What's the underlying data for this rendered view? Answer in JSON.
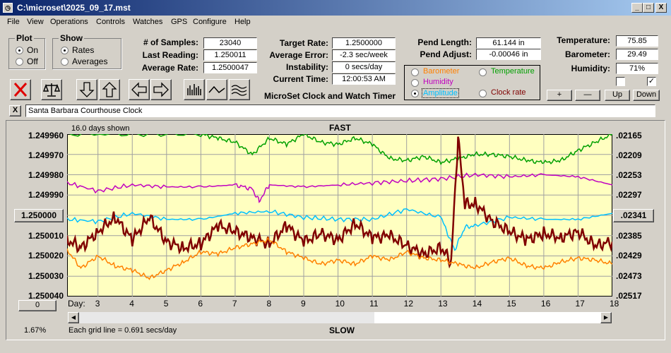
{
  "window": {
    "title": "C:\\microset\\2025_09_17.mst",
    "icon": "watch-icon",
    "minimize": "_",
    "maximize": "□",
    "close": "X"
  },
  "menu": [
    "File",
    "View",
    "Operations",
    "Controls",
    "Watches",
    "GPS",
    "Configure",
    "Help"
  ],
  "plot_group": {
    "title": "Plot",
    "on": "On",
    "off": "Off",
    "selected": "On"
  },
  "show_group": {
    "title": "Show",
    "rates": "Rates",
    "averages": "Averages",
    "selected": "Rates"
  },
  "stats": {
    "samples_label": "# of Samples:",
    "samples": "23040",
    "last_label": "Last Reading:",
    "last": "1.250011",
    "avg_label": "Average Rate:",
    "avg": "1.2500047",
    "target_label": "Target Rate:",
    "target": "1.2500000",
    "averr_label": "Average Error:",
    "averr": "-2.3 sec/week",
    "instab_label": "Instability:",
    "instab": "0 secs/day",
    "time_label": "Current Time:",
    "time": "12:00:53 AM",
    "pendlen_label": "Pend Length:",
    "pendlen": "61.144 in",
    "pendadj_label": "Pend Adjust:",
    "pendadj": "-0.00046 in",
    "temp_label": "Temperature:",
    "temp": "75.85",
    "baro_label": "Barometer:",
    "baro": "29.49",
    "hum_label": "Humidity:",
    "hum": "71%"
  },
  "app_name": "MicroSet Clock and Watch Timer",
  "sensors": {
    "barometer": "Barometer",
    "temperature": "Temperature",
    "humidity": "Humidity",
    "amplitude": "Amplitude",
    "clockrate": "Clock rate",
    "selected": "Amplitude"
  },
  "sensor_colors": {
    "barometer": "#ff8000",
    "temperature": "#00a000",
    "humidity": "#c000c0",
    "amplitude": "#00c0ff",
    "clockrate": "#800000"
  },
  "checks": {
    "left": false,
    "right": true,
    "right_mark": "✓"
  },
  "buttons": {
    "plus": "+",
    "minus": "—",
    "up": "Up",
    "down": "Down",
    "zero": "0",
    "rate_center": "1.250000",
    "right_center": ".02341"
  },
  "toolbar_icons": [
    "cancel-icon",
    "balance-icon",
    "arrow-down-icon",
    "arrow-up-icon",
    "arrow-left-icon",
    "arrow-right-icon",
    "bar-graph-icon",
    "line-graph-icon",
    "wave-icon"
  ],
  "clock_close": "X",
  "clock_name": "Santa Barbara Courthouse Clock",
  "plot": {
    "days_shown": "16.0 days shown",
    "fast": "FAST",
    "slow": "SLOW",
    "grid_note": "Each grid line = 0.691 secs/day",
    "percent": "1.67%",
    "day_label": "Day:",
    "days": [
      "3",
      "4",
      "5",
      "6",
      "7",
      "8",
      "9",
      "10",
      "11",
      "12",
      "13",
      "14",
      "15",
      "16",
      "17",
      "18"
    ],
    "left_axis": [
      "1.249960",
      "1.249970",
      "1.249980",
      "1.249990",
      "1.250010",
      "1.250020",
      "1.250030",
      "1.250040"
    ],
    "right_axis": [
      ".02165",
      ".02209",
      ".02253",
      ".02297",
      ".02385",
      ".02429",
      ".02473",
      ".02517"
    ]
  },
  "chart_data": {
    "type": "line",
    "x_range": [
      2.1,
      18
    ],
    "ylim": [
      1.24996,
      1.25004
    ],
    "series": [
      {
        "name": "Temperature",
        "color": "#00a000",
        "x": [
          2.1,
          4,
          6,
          6.5,
          7,
          7.5,
          8,
          8.5,
          9,
          9.5,
          10,
          10.5,
          11,
          11.5,
          12,
          12.5,
          13,
          13.5,
          14,
          14.5,
          15,
          15.5,
          16,
          16.5,
          17,
          17.5,
          18
        ],
        "y": [
          1.24996,
          1.24996,
          1.24996,
          1.249962,
          1.249964,
          1.24997,
          1.249962,
          1.249965,
          1.24996,
          1.249964,
          1.249965,
          1.249962,
          1.249965,
          1.249972,
          1.249973,
          1.249971,
          1.249974,
          1.249972,
          1.24997,
          1.24997,
          1.249971,
          1.249973,
          1.249974,
          1.249973,
          1.249968,
          1.249964,
          1.24996
        ]
      },
      {
        "name": "Humidity",
        "color": "#c000c0",
        "x": [
          2.1,
          3,
          4,
          5,
          6,
          7,
          7.5,
          7.7,
          8,
          9,
          10,
          11,
          12,
          13,
          14,
          15,
          16,
          17,
          18
        ],
        "y": [
          1.249984,
          1.249988,
          1.249985,
          1.249986,
          1.249986,
          1.249985,
          1.249987,
          1.249993,
          1.249985,
          1.249986,
          1.249985,
          1.249984,
          1.249983,
          1.249982,
          1.24998,
          1.249981,
          1.24998,
          1.249981,
          1.249985
        ]
      },
      {
        "name": "Amplitude",
        "color": "#00c0ff",
        "x": [
          2.1,
          3,
          4,
          5,
          6,
          7,
          8,
          9,
          10,
          11,
          12,
          13,
          13.4,
          13.7,
          14,
          15,
          16,
          17,
          18
        ],
        "y": [
          1.250002,
          1.250003,
          1.249999,
          1.250002,
          1.250002,
          1.249999,
          1.249998,
          1.250001,
          1.250002,
          1.250002,
          1.249997,
          1.250001,
          1.250017,
          1.250006,
          1.250005,
          1.250001,
          1.250002,
          1.250002,
          1.249999
        ]
      },
      {
        "name": "Clock rate",
        "color": "#800000",
        "x": [
          2.1,
          2.5,
          3,
          3.5,
          4,
          4.5,
          5,
          5.5,
          6,
          6.5,
          7,
          7.5,
          8,
          8.5,
          9,
          9.5,
          10,
          10.5,
          11,
          11.5,
          12,
          12.5,
          13,
          13.3,
          13.5,
          13.7,
          14,
          14.5,
          15,
          15.5,
          16,
          16.5,
          17,
          17.5,
          18
        ],
        "y": [
          1.250012,
          1.250016,
          1.250008,
          1.250001,
          1.250012,
          1.250001,
          1.250013,
          1.250016,
          1.250014,
          1.250005,
          1.250008,
          1.250011,
          1.250014,
          1.250005,
          1.250013,
          1.250009,
          1.250012,
          1.250004,
          1.250011,
          1.25001,
          1.250015,
          1.250019,
          1.250016,
          1.250023,
          1.249962,
          1.249995,
          1.249994,
          1.250003,
          1.250008,
          1.250012,
          1.250009,
          1.250011,
          1.250008,
          1.250015,
          1.250013
        ]
      },
      {
        "name": "Barometer",
        "color": "#ff8000",
        "x": [
          2.1,
          2.5,
          3,
          3.5,
          4,
          4.5,
          5,
          5.5,
          6,
          6.5,
          7,
          7.5,
          8,
          8.5,
          9,
          9.5,
          10,
          10.5,
          11,
          11.5,
          12,
          12.5,
          13,
          13.5,
          14,
          14.5,
          15,
          15.5,
          16,
          16.5,
          17,
          17.5,
          18
        ],
        "y": [
          1.250017,
          1.250026,
          1.25002,
          1.250025,
          1.250027,
          1.250031,
          1.250027,
          1.250023,
          1.250018,
          1.250019,
          1.250016,
          1.250014,
          1.250012,
          1.250018,
          1.250021,
          1.250024,
          1.250022,
          1.250024,
          1.25002,
          1.250022,
          1.250018,
          1.250021,
          1.250022,
          1.250024,
          1.250026,
          1.250023,
          1.250021,
          1.250025,
          1.250026,
          1.250023,
          1.250021,
          1.250022,
          1.250024
        ]
      }
    ]
  }
}
